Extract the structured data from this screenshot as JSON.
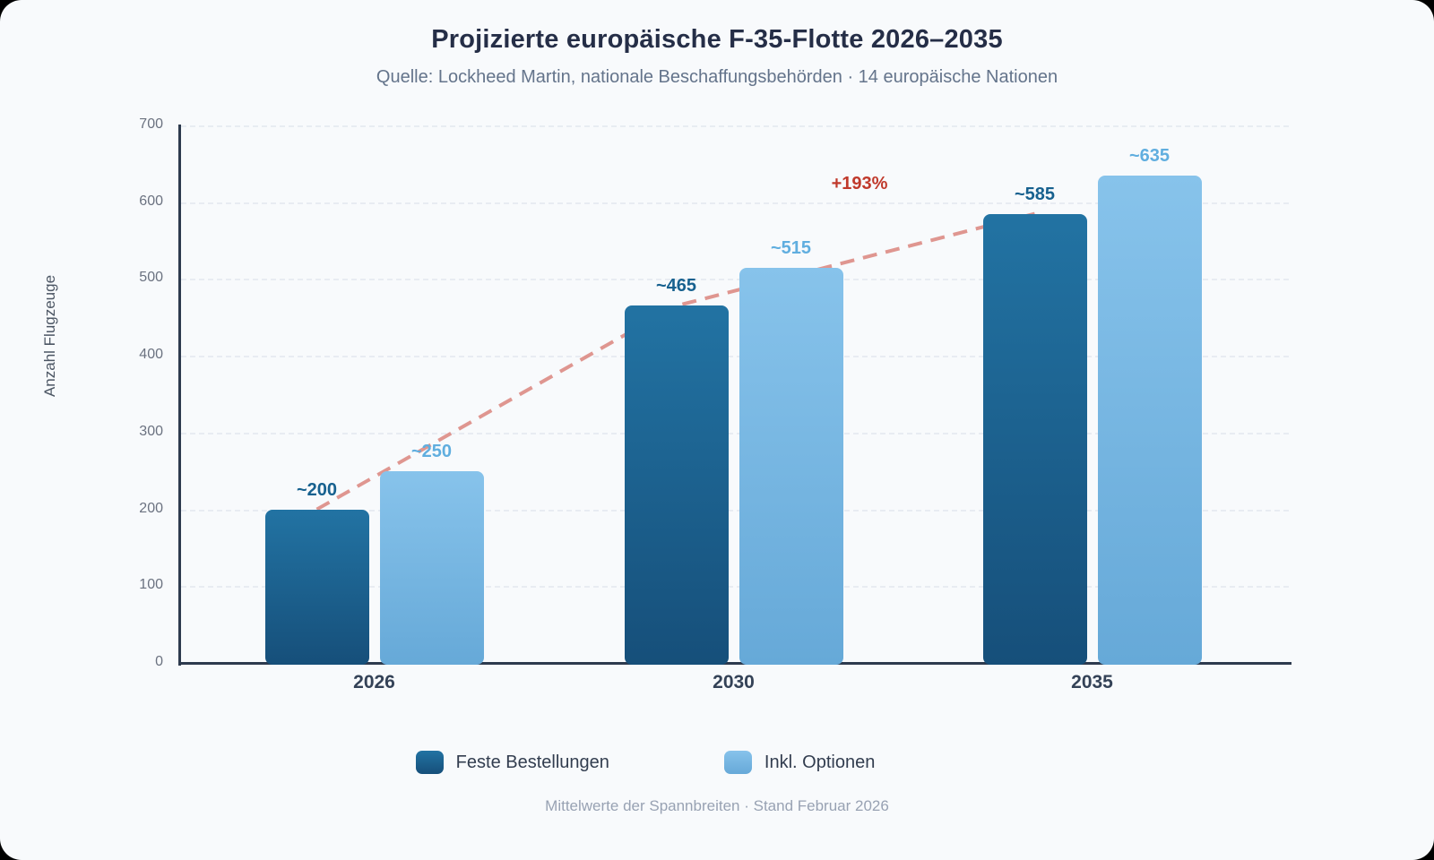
{
  "header": {
    "title": "Projizierte europäische F-35-Flotte 2026–2035",
    "subtitle": "Quelle: Lockheed Martin, nationale Beschaffungsbehörden · 14 europäische Nationen"
  },
  "chart_data": {
    "type": "bar",
    "title": "Projizierte europäische F-35-Flotte 2026–2035",
    "categories": [
      "2026",
      "2030",
      "2035"
    ],
    "series": [
      {
        "name": "Feste Bestellungen",
        "values": [
          200,
          465,
          585
        ],
        "value_labels": [
          "~200",
          "~465",
          "~585"
        ],
        "color_top": "#2273a3",
        "color_bottom": "#164f7a",
        "label_color": "#17618f"
      },
      {
        "name": "Inkl. Optionen",
        "values": [
          250,
          515,
          635
        ],
        "value_labels": [
          "~250",
          "~515",
          "~635"
        ],
        "color_top": "#87c3eb",
        "color_bottom": "#66a9d8",
        "label_color": "#60aedf"
      }
    ],
    "xlabel": "",
    "ylabel": "Anzahl Flugzeuge",
    "ylim": [
      0,
      700
    ],
    "yticks": [
      0,
      100,
      200,
      300,
      400,
      500,
      600,
      700
    ],
    "grid": true,
    "legend_position": "bottom",
    "trend": {
      "follows_series": "Feste Bestellungen",
      "annotation": "+193%",
      "color": "#dc8b84",
      "annotation_color": "#c0392b"
    }
  },
  "footer": {
    "note": "Mittelwerte der Spannbreiten · Stand Februar 2026"
  },
  "colors": {
    "background": "#f8fafc",
    "axis": "#2d3a4e",
    "grid": "#e8ecf2",
    "firm_orders_accent": "#1b608d",
    "options_accent": "#7cbbe8",
    "trend_line": "#dc8b84",
    "annotation_red": "#c0392b"
  }
}
